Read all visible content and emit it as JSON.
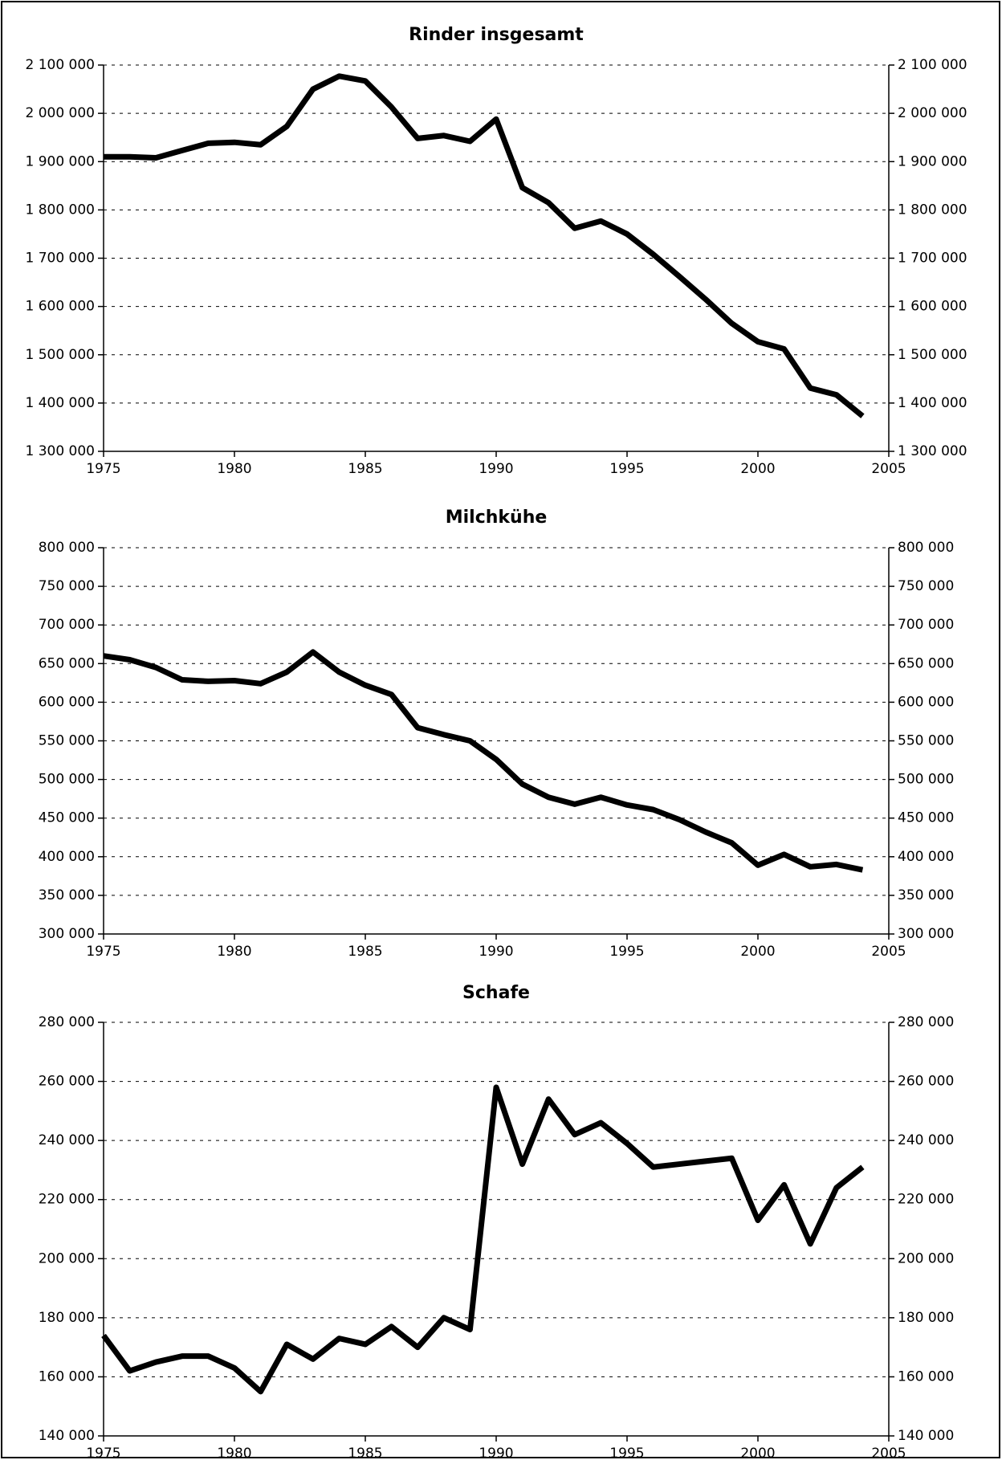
{
  "chart_data": [
    {
      "type": "line",
      "title": "Rinder insgesamt",
      "x": [
        1975,
        1976,
        1977,
        1978,
        1979,
        1980,
        1981,
        1982,
        1983,
        1984,
        1985,
        1986,
        1987,
        1988,
        1989,
        1990,
        1991,
        1992,
        1993,
        1994,
        1995,
        1996,
        1997,
        1998,
        1999,
        2000,
        2001,
        2002,
        2003,
        2004
      ],
      "series": [
        {
          "color": "#000000",
          "values": [
            1910000,
            1910000,
            1908000,
            1923000,
            1938000,
            1940000,
            1935000,
            1973000,
            2050000,
            2077000,
            2067000,
            2013000,
            1948000,
            1954000,
            1942000,
            1988000,
            1846000,
            1815000,
            1762000,
            1777000,
            1750000,
            1708000,
            1662000,
            1615000,
            1565000,
            1527000,
            1512000,
            1431000,
            1417000,
            1373000
          ]
        }
      ],
      "xlim": [
        1975,
        2005
      ],
      "xticks": [
        1975,
        1980,
        1985,
        1990,
        1995,
        2000,
        2005
      ],
      "ylim": [
        1300000,
        2100000
      ],
      "yticks": [
        {
          "value": 1300000,
          "label": "1 300 000"
        },
        {
          "value": 1400000,
          "label": "1 400 000"
        },
        {
          "value": 1500000,
          "label": "1 500 000"
        },
        {
          "value": 1600000,
          "label": "1 600 000"
        },
        {
          "value": 1700000,
          "label": "1 700 000"
        },
        {
          "value": 1800000,
          "label": "1 800 000"
        },
        {
          "value": 1900000,
          "label": "1 900 000"
        },
        {
          "value": 2000000,
          "label": "2 000 000"
        },
        {
          "value": 2100000,
          "label": "2 100 000"
        }
      ],
      "grid": true
    },
    {
      "type": "line",
      "title": "Milchkühe",
      "x": [
        1975,
        1976,
        1977,
        1978,
        1979,
        1980,
        1981,
        1982,
        1983,
        1984,
        1985,
        1986,
        1987,
        1988,
        1989,
        1990,
        1991,
        1992,
        1993,
        1994,
        1995,
        1996,
        1997,
        1998,
        1999,
        2000,
        2001,
        2002,
        2003,
        2004
      ],
      "series": [
        {
          "color": "#000000",
          "values": [
            660000,
            655000,
            645000,
            629000,
            627000,
            628000,
            624000,
            639000,
            665000,
            639000,
            622000,
            610000,
            567000,
            558000,
            550000,
            526000,
            494000,
            477000,
            468000,
            477000,
            467000,
            461000,
            448000,
            432000,
            418000,
            389000,
            403000,
            387000,
            390000,
            383000
          ]
        }
      ],
      "xlim": [
        1975,
        2005
      ],
      "xticks": [
        1975,
        1980,
        1985,
        1990,
        1995,
        2000,
        2005
      ],
      "ylim": [
        300000,
        800000
      ],
      "yticks": [
        {
          "value": 300000,
          "label": "300 000"
        },
        {
          "value": 350000,
          "label": "350 000"
        },
        {
          "value": 400000,
          "label": "400 000"
        },
        {
          "value": 450000,
          "label": "450 000"
        },
        {
          "value": 500000,
          "label": "500 000"
        },
        {
          "value": 550000,
          "label": "550 000"
        },
        {
          "value": 600000,
          "label": "600 000"
        },
        {
          "value": 650000,
          "label": "650 000"
        },
        {
          "value": 700000,
          "label": "700 000"
        },
        {
          "value": 750000,
          "label": "750 000"
        },
        {
          "value": 800000,
          "label": "800 000"
        }
      ],
      "grid": true
    },
    {
      "type": "line",
      "title": "Schafe",
      "x": [
        1975,
        1976,
        1977,
        1978,
        1979,
        1980,
        1981,
        1982,
        1983,
        1984,
        1985,
        1986,
        1987,
        1988,
        1989,
        1990,
        1991,
        1992,
        1993,
        1994,
        1995,
        1996,
        1997,
        1998,
        1999,
        2000,
        2001,
        2002,
        2003,
        2004
      ],
      "series": [
        {
          "color": "#000000",
          "values": [
            174000,
            162000,
            165000,
            167000,
            167000,
            163000,
            155000,
            171000,
            166000,
            173000,
            171000,
            177000,
            170000,
            180000,
            176000,
            258000,
            232000,
            254000,
            242000,
            246000,
            239000,
            231000,
            232000,
            233000,
            234000,
            213000,
            225000,
            205000,
            224000,
            231000
          ]
        }
      ],
      "xlim": [
        1975,
        2005
      ],
      "xticks": [
        1975,
        1980,
        1985,
        1990,
        1995,
        2000,
        2005
      ],
      "ylim": [
        140000,
        280000
      ],
      "yticks": [
        {
          "value": 140000,
          "label": "140 000"
        },
        {
          "value": 160000,
          "label": "160 000"
        },
        {
          "value": 180000,
          "label": "180 000"
        },
        {
          "value": 200000,
          "label": "200 000"
        },
        {
          "value": 220000,
          "label": "220 000"
        },
        {
          "value": 240000,
          "label": "240 000"
        },
        {
          "value": 260000,
          "label": "260 000"
        },
        {
          "value": 280000,
          "label": "280 000"
        }
      ],
      "grid": true
    }
  ]
}
